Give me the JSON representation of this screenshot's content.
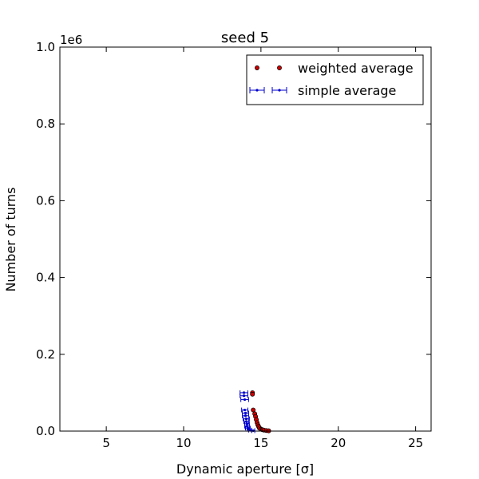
{
  "chart_data": {
    "type": "scatter",
    "title": "seed 5",
    "xlabel": "Dynamic aperture [σ]",
    "ylabel": "Number of turns",
    "y_offset_label": "1e6",
    "xlim": [
      2,
      26
    ],
    "ylim": [
      0,
      1000000
    ],
    "x_ticks": [
      5,
      10,
      15,
      20,
      25
    ],
    "x_tick_labels": [
      "5",
      "10",
      "15",
      "20",
      "25"
    ],
    "y_ticks": [
      0,
      200000,
      400000,
      600000,
      800000,
      1000000
    ],
    "y_tick_labels": [
      "0.0",
      "0.2",
      "0.4",
      "0.6",
      "0.8",
      "1.0"
    ],
    "grid": false,
    "legend_position": "top-right",
    "series": [
      {
        "name": "weighted average",
        "color": "#cc0000",
        "marker": "circle",
        "errorbars": false,
        "points": [
          {
            "x": 14.45,
            "y": 100000
          },
          {
            "x": 14.45,
            "y": 96000
          },
          {
            "x": 14.5,
            "y": 55000
          },
          {
            "x": 14.6,
            "y": 45000
          },
          {
            "x": 14.65,
            "y": 38000
          },
          {
            "x": 14.7,
            "y": 30000
          },
          {
            "x": 14.75,
            "y": 22000
          },
          {
            "x": 14.8,
            "y": 16000
          },
          {
            "x": 14.85,
            "y": 12000
          },
          {
            "x": 14.9,
            "y": 8000
          },
          {
            "x": 15.0,
            "y": 5000
          },
          {
            "x": 15.1,
            "y": 3500
          },
          {
            "x": 15.2,
            "y": 2500
          },
          {
            "x": 15.35,
            "y": 1500
          },
          {
            "x": 15.5,
            "y": 800
          }
        ]
      },
      {
        "name": "simple average",
        "color": "#0000cc",
        "marker": "dot",
        "errorbars": true,
        "points": [
          {
            "x": 13.9,
            "y": 100000,
            "xerr": 0.25
          },
          {
            "x": 13.9,
            "y": 92000,
            "xerr": 0.25
          },
          {
            "x": 13.95,
            "y": 82000,
            "xerr": 0.25
          },
          {
            "x": 13.95,
            "y": 55000,
            "xerr": 0.2
          },
          {
            "x": 14.0,
            "y": 47000,
            "xerr": 0.2
          },
          {
            "x": 14.0,
            "y": 40000,
            "xerr": 0.2
          },
          {
            "x": 14.05,
            "y": 32000,
            "xerr": 0.2
          },
          {
            "x": 14.05,
            "y": 25000,
            "xerr": 0.15
          },
          {
            "x": 14.1,
            "y": 19000,
            "xerr": 0.15
          },
          {
            "x": 14.1,
            "y": 13000,
            "xerr": 0.15
          },
          {
            "x": 14.15,
            "y": 8000,
            "xerr": 0.15
          },
          {
            "x": 14.2,
            "y": 5000,
            "xerr": 0.1
          },
          {
            "x": 14.3,
            "y": 2500,
            "xerr": 0.1
          },
          {
            "x": 14.5,
            "y": 1200,
            "xerr": 0.1
          }
        ]
      }
    ]
  }
}
